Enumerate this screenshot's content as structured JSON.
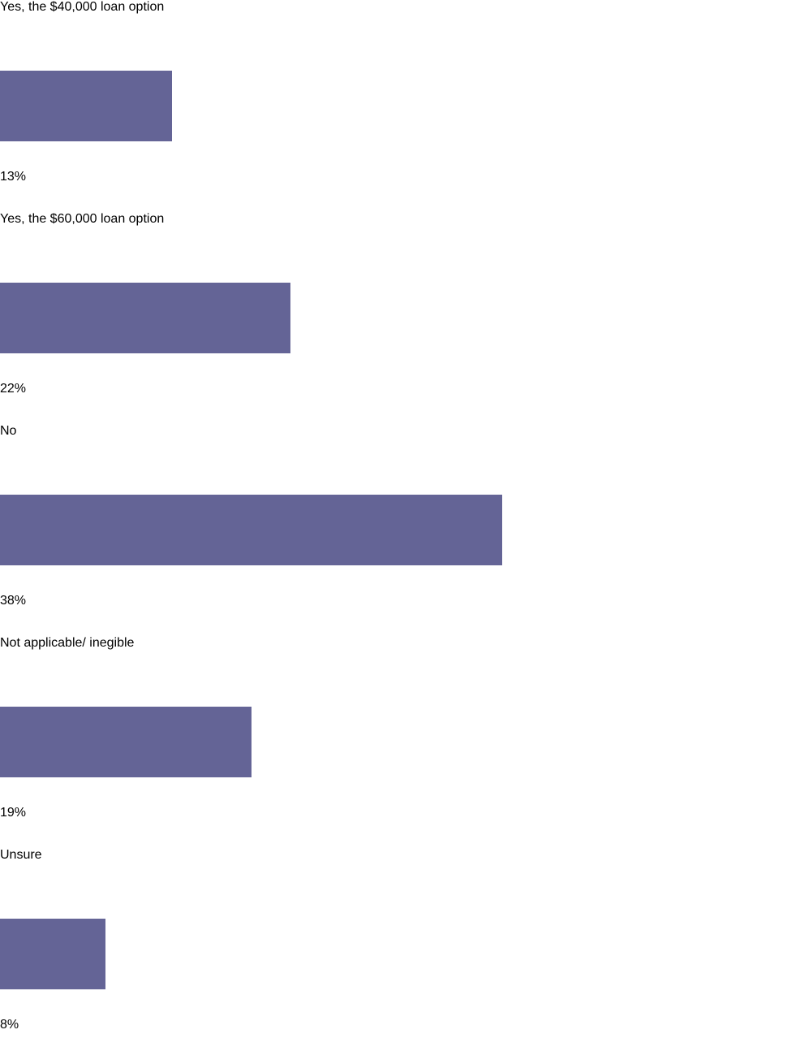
{
  "chart_data": {
    "type": "bar",
    "orientation": "horizontal",
    "categories": [
      "Yes, the $40,000 loan option",
      "Yes, the $60,000 loan option",
      "No",
      "Not applicable/ inegible",
      "Unsure"
    ],
    "values": [
      13,
      22,
      38,
      19,
      8
    ],
    "value_labels": [
      "13%",
      "22%",
      "38%",
      "19%",
      "8%"
    ],
    "color": "#646496"
  }
}
